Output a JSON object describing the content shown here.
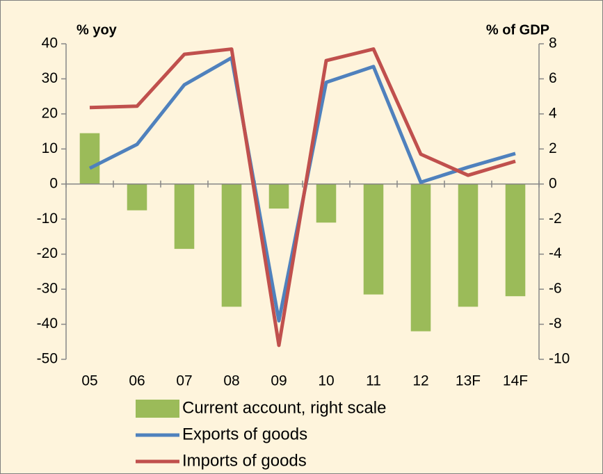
{
  "chart_data": {
    "type": "bar_line",
    "y_label": "% yoy",
    "y2_label": "% of GDP",
    "categories": [
      "05",
      "06",
      "07",
      "08",
      "09",
      "10",
      "11",
      "12",
      "13F",
      "14F"
    ],
    "series": [
      {
        "name": "Current account, right scale",
        "type": "bar",
        "axis": "y2",
        "color": "#9bbb59",
        "values": [
          2.9,
          -1.5,
          -3.7,
          -7.0,
          -1.4,
          -2.2,
          -6.3,
          -8.4,
          -7.0,
          -6.4
        ]
      },
      {
        "name": "Exports of goods",
        "type": "line",
        "color": "#4f81bd",
        "values": [
          4.5,
          11.3,
          28.3,
          36,
          -39,
          29,
          33.5,
          0.5,
          4.8,
          8.7
        ]
      },
      {
        "name": "Imports of goods",
        "type": "line",
        "color": "#c0504d",
        "values": [
          21.8,
          22.2,
          37,
          38.5,
          -46,
          35.2,
          38.5,
          8.5,
          2.5,
          6.5
        ]
      }
    ],
    "ylim": [
      -50,
      40
    ],
    "yticks": [
      -50,
      -40,
      -30,
      -20,
      -10,
      0,
      10,
      20,
      30,
      40
    ],
    "y2lim": [
      -10,
      8
    ],
    "y2ticks": [
      -10,
      -8,
      -6,
      -4,
      -2,
      0,
      2,
      4,
      6,
      8
    ],
    "legend": "bottom"
  }
}
